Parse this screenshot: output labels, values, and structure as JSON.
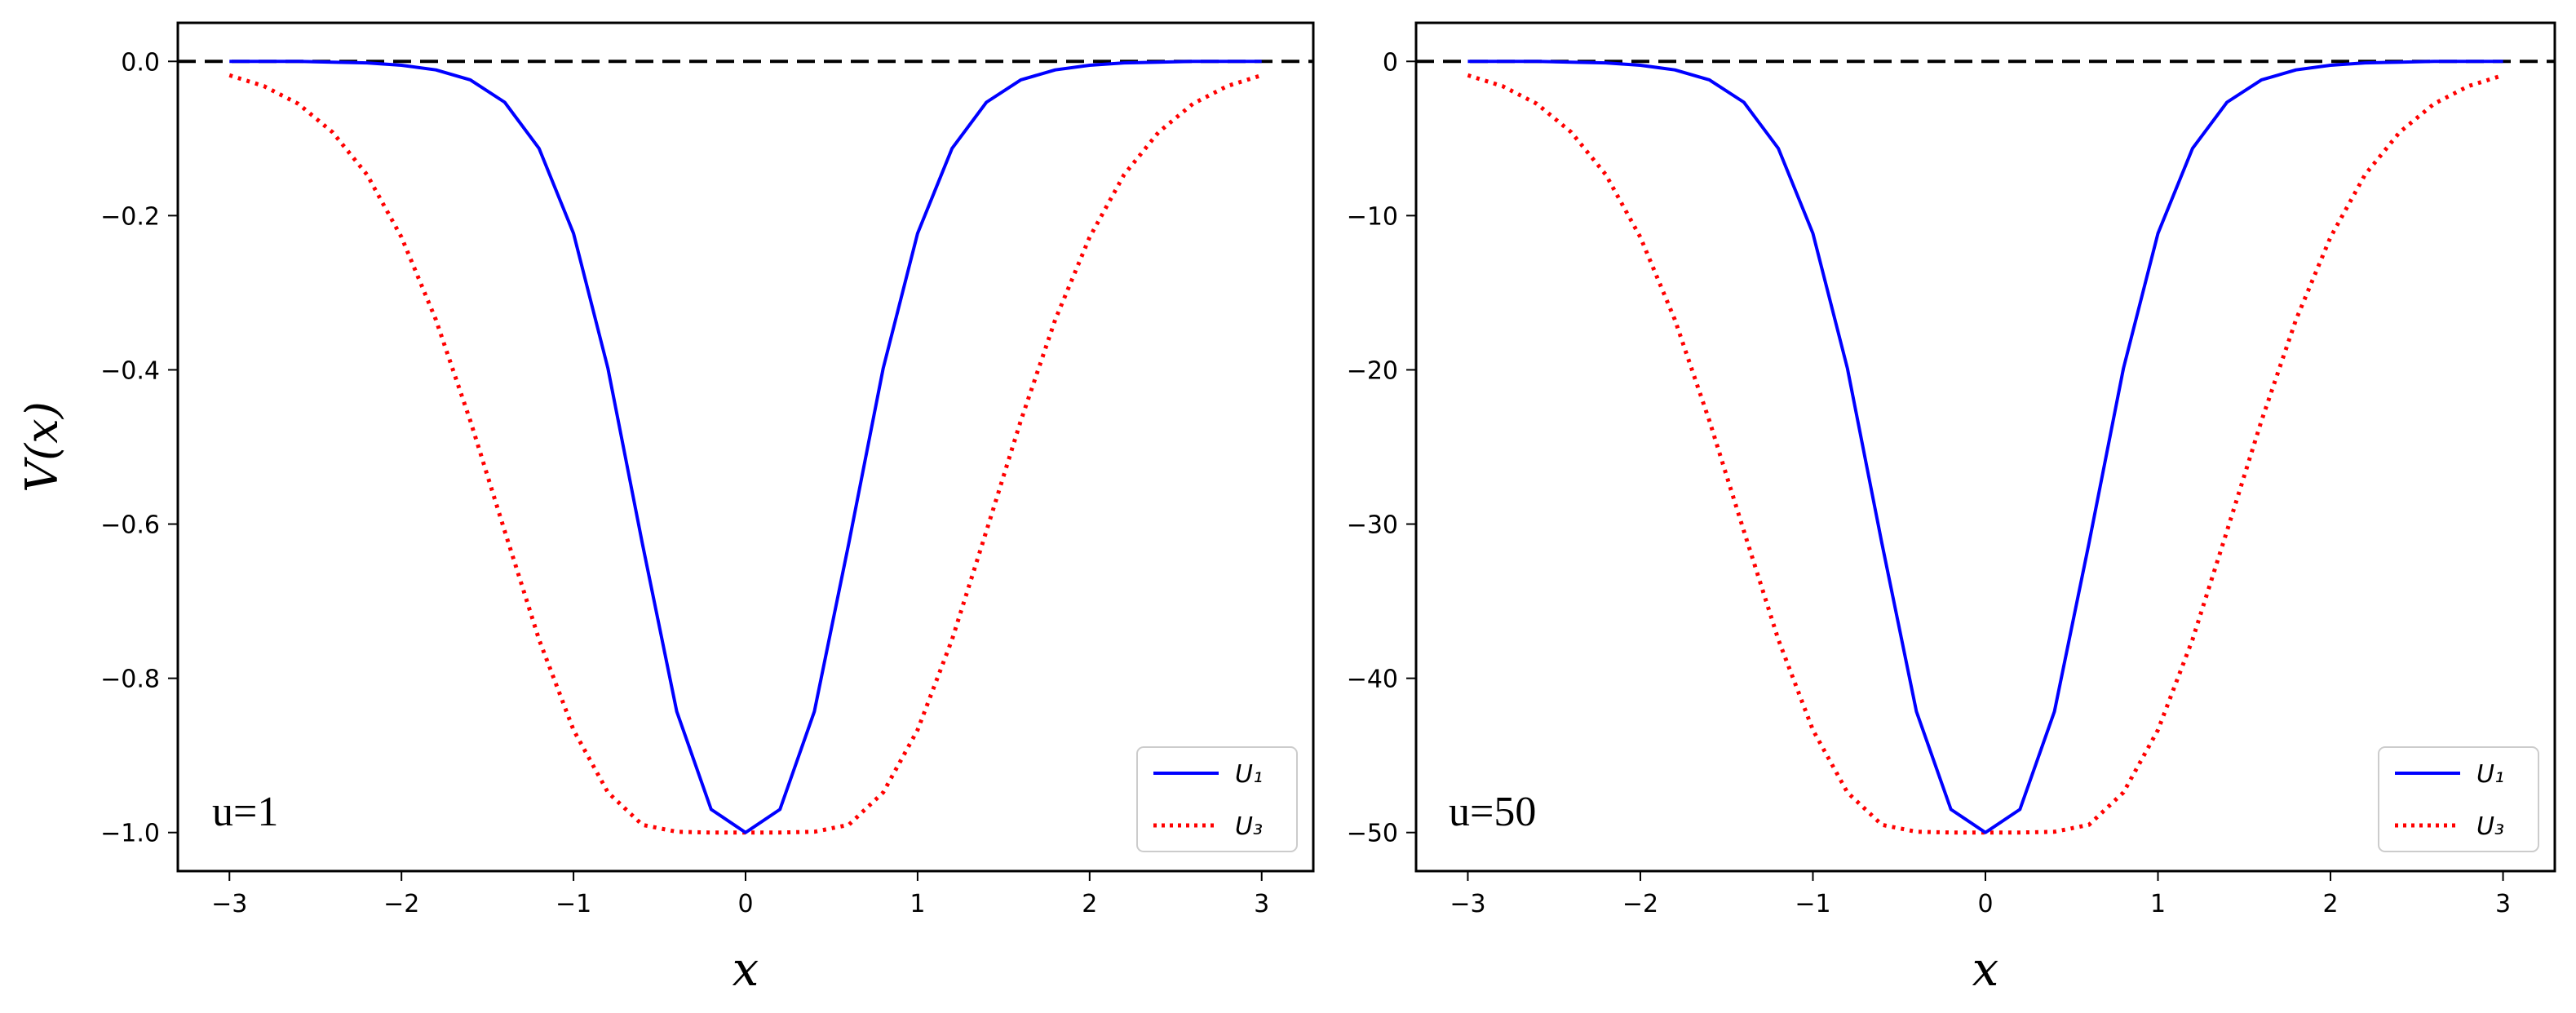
{
  "chart_data": [
    {
      "type": "line",
      "annotation": "u=1",
      "xlabel": "x",
      "ylabel": "V(x)",
      "xlim": [
        -3.3,
        3.3
      ],
      "ylim": [
        -1.05,
        0.05
      ],
      "xticks": [
        -3,
        -2,
        -1,
        0,
        1,
        2,
        3
      ],
      "xtick_labels": [
        "−3",
        "−2",
        "−1",
        "0",
        "1",
        "2",
        "3"
      ],
      "yticks": [
        0.0,
        -0.2,
        -0.4,
        -0.6,
        -0.8,
        -1.0
      ],
      "ytick_labels": [
        "0.0",
        "−0.2",
        "−0.4",
        "−0.6",
        "−0.8",
        "−1.0"
      ],
      "x": [
        -3.0,
        -2.8,
        -2.6,
        -2.4,
        -2.2,
        -2.0,
        -1.8,
        -1.6,
        -1.4,
        -1.2,
        -1.0,
        -0.8,
        -0.6,
        -0.4,
        -0.2,
        0.0,
        0.2,
        0.4,
        0.6,
        0.8,
        1.0,
        1.2,
        1.4,
        1.6,
        1.8,
        2.0,
        2.2,
        2.4,
        2.6,
        2.8,
        3.0
      ],
      "series": [
        {
          "name": "U₁",
          "color": "#0000ff",
          "style": "solid",
          "values": [
            0.0,
            0.0,
            0.0,
            -0.001,
            -0.002,
            -0.005,
            -0.011,
            -0.024,
            -0.053,
            -0.113,
            -0.223,
            -0.398,
            -0.625,
            -0.843,
            -0.97,
            -1.0,
            -0.97,
            -0.843,
            -0.625,
            -0.398,
            -0.223,
            -0.113,
            -0.053,
            -0.024,
            -0.011,
            -0.005,
            -0.002,
            -0.001,
            0.0,
            0.0,
            0.0
          ]
        },
        {
          "name": "U₃",
          "color": "#ff0000",
          "style": "dotted",
          "values": [
            -0.018,
            -0.032,
            -0.055,
            -0.092,
            -0.147,
            -0.228,
            -0.335,
            -0.466,
            -0.609,
            -0.75,
            -0.867,
            -0.948,
            -0.99,
            -0.999,
            -1.0,
            -1.0,
            -1.0,
            -0.999,
            -0.99,
            -0.948,
            -0.867,
            -0.75,
            -0.609,
            -0.466,
            -0.335,
            -0.228,
            -0.147,
            -0.092,
            -0.055,
            -0.032,
            -0.018
          ]
        }
      ],
      "reference_line": {
        "y": 0,
        "color": "#000000",
        "style": "dashed"
      },
      "legend": {
        "position": "bottom-right",
        "entries": [
          "U₁",
          "U₃"
        ]
      }
    },
    {
      "type": "line",
      "annotation": "u=50",
      "xlabel": "x",
      "ylabel": "",
      "xlim": [
        -3.3,
        3.3
      ],
      "ylim": [
        -52.5,
        2.5
      ],
      "xticks": [
        -3,
        -2,
        -1,
        0,
        1,
        2,
        3
      ],
      "xtick_labels": [
        "−3",
        "−2",
        "−1",
        "0",
        "1",
        "2",
        "3"
      ],
      "yticks": [
        0,
        -10,
        -20,
        -30,
        -40,
        -50
      ],
      "ytick_labels": [
        "0",
        "−10",
        "−20",
        "−30",
        "−40",
        "−50"
      ],
      "x": [
        -3.0,
        -2.8,
        -2.6,
        -2.4,
        -2.2,
        -2.0,
        -1.8,
        -1.6,
        -1.4,
        -1.2,
        -1.0,
        -0.8,
        -0.6,
        -0.4,
        -0.2,
        0.0,
        0.2,
        0.4,
        0.6,
        0.8,
        1.0,
        1.2,
        1.4,
        1.6,
        1.8,
        2.0,
        2.2,
        2.4,
        2.6,
        2.8,
        3.0
      ],
      "series": [
        {
          "name": "U₁",
          "color": "#0000ff",
          "style": "solid",
          "values": [
            0.0,
            0.0,
            0.0,
            -0.05,
            -0.1,
            -0.25,
            -0.55,
            -1.2,
            -2.65,
            -5.65,
            -11.15,
            -19.9,
            -31.25,
            -42.15,
            -48.5,
            -50.0,
            -48.5,
            -42.15,
            -31.25,
            -19.9,
            -11.15,
            -5.65,
            -2.65,
            -1.2,
            -0.55,
            -0.25,
            -0.1,
            -0.05,
            0.0,
            0.0,
            0.0
          ]
        },
        {
          "name": "U₃",
          "color": "#ff0000",
          "style": "dotted",
          "values": [
            -0.9,
            -1.6,
            -2.75,
            -4.6,
            -7.35,
            -11.4,
            -16.75,
            -23.3,
            -30.45,
            -37.5,
            -43.35,
            -47.4,
            -49.5,
            -49.95,
            -50.0,
            -50.0,
            -50.0,
            -49.95,
            -49.5,
            -47.4,
            -43.35,
            -37.5,
            -30.45,
            -23.3,
            -16.75,
            -11.4,
            -7.35,
            -4.6,
            -2.75,
            -1.6,
            -0.9
          ]
        }
      ],
      "reference_line": {
        "y": 0,
        "color": "#000000",
        "style": "dashed"
      },
      "legend": {
        "position": "bottom-right",
        "entries": [
          "U₁",
          "U₃"
        ]
      }
    }
  ]
}
